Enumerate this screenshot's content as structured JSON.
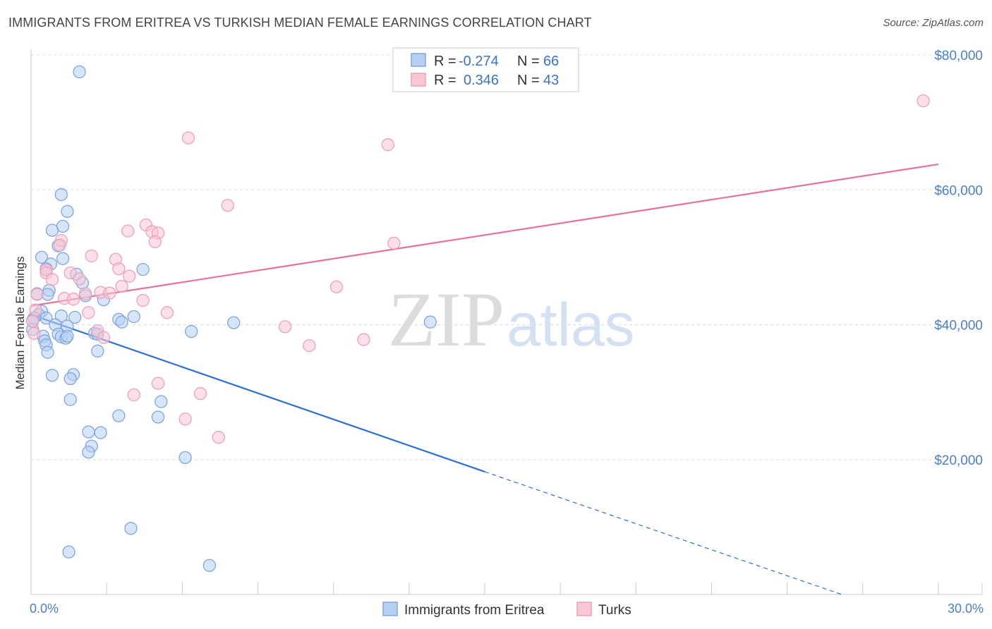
{
  "title": "IMMIGRANTS FROM ERITREA VS TURKISH MEDIAN FEMALE EARNINGS CORRELATION CHART",
  "source": "Source: ZipAtlas.com",
  "watermark": {
    "zip": "ZIP",
    "atlas": "atlas"
  },
  "chart_data": {
    "type": "scatter",
    "title": "IMMIGRANTS FROM ERITREA VS TURKISH MEDIAN FEMALE EARNINGS CORRELATION CHART",
    "xlabel": "",
    "ylabel": "Median Female Earnings",
    "xlim": [
      0,
      30
    ],
    "ylim": [
      0,
      82000
    ],
    "x_tick_labels": [
      "0.0%",
      "30.0%"
    ],
    "y_ticks": [
      20000,
      40000,
      60000,
      80000
    ],
    "y_tick_labels": [
      "$20,000",
      "$40,000",
      "$60,000",
      "$80,000"
    ],
    "legend": {
      "position": "top-center",
      "rows": [
        {
          "r_label": "R =",
          "r_value": "-0.274",
          "n_label": "N =",
          "n_value": "66"
        },
        {
          "r_label": "R =",
          "r_value": "0.346",
          "n_label": "N =",
          "n_value": "43"
        }
      ]
    },
    "series": [
      {
        "name": "Immigrants from Eritrea",
        "color": "#7fa6e0",
        "fill": "#b7cff2",
        "line_color": "#2e6fd0",
        "r": -0.274,
        "n": 66,
        "trend": {
          "x0": 0,
          "y0": 41500,
          "x1": 15,
          "y1": 18200,
          "dash_to_x": 26.8,
          "dash_to_y": 0
        },
        "points": [
          [
            1.6,
            77500
          ],
          [
            1.0,
            59300
          ],
          [
            1.2,
            56800
          ],
          [
            0.7,
            54000
          ],
          [
            1.05,
            54600
          ],
          [
            0.9,
            51700
          ],
          [
            0.35,
            50000
          ],
          [
            1.05,
            49800
          ],
          [
            0.65,
            49000
          ],
          [
            0.5,
            48300
          ],
          [
            3.7,
            48200
          ],
          [
            1.5,
            47500
          ],
          [
            1.7,
            46200
          ],
          [
            0.6,
            45100
          ],
          [
            0.2,
            44600
          ],
          [
            0.55,
            44500
          ],
          [
            1.8,
            44300
          ],
          [
            2.4,
            43700
          ],
          [
            0.35,
            42000
          ],
          [
            0.25,
            41500
          ],
          [
            0.1,
            41000
          ],
          [
            0.5,
            41000
          ],
          [
            0.05,
            40600
          ],
          [
            1.0,
            41300
          ],
          [
            1.45,
            41100
          ],
          [
            3.4,
            41200
          ],
          [
            2.9,
            40800
          ],
          [
            3.0,
            40400
          ],
          [
            6.7,
            40300
          ],
          [
            13.2,
            40400
          ],
          [
            0.8,
            40000
          ],
          [
            1.2,
            39800
          ],
          [
            0.05,
            39300
          ],
          [
            5.3,
            39000
          ],
          [
            2.1,
            38700
          ],
          [
            2.2,
            38600
          ],
          [
            0.9,
            38600
          ],
          [
            0.4,
            38300
          ],
          [
            1.0,
            38200
          ],
          [
            1.15,
            38000
          ],
          [
            1.2,
            38300
          ],
          [
            0.45,
            37600
          ],
          [
            0.5,
            37000
          ],
          [
            2.2,
            36100
          ],
          [
            0.55,
            35900
          ],
          [
            0.7,
            32500
          ],
          [
            1.4,
            32600
          ],
          [
            1.3,
            32000
          ],
          [
            1.3,
            28900
          ],
          [
            4.3,
            28600
          ],
          [
            2.9,
            26500
          ],
          [
            4.2,
            26300
          ],
          [
            1.9,
            24100
          ],
          [
            2.3,
            24000
          ],
          [
            2.0,
            22000
          ],
          [
            1.9,
            21100
          ],
          [
            5.1,
            20300
          ],
          [
            3.3,
            9800
          ],
          [
            1.25,
            6300
          ],
          [
            5.9,
            4300
          ]
        ]
      },
      {
        "name": "Turks",
        "color": "#f0a0b8",
        "fill": "#f9c6d4",
        "line_color": "#e8709a",
        "r": 0.346,
        "n": 43,
        "trend": {
          "x0": 0,
          "y0": 42800,
          "x1": 30,
          "y1": 63800
        },
        "points": [
          [
            29.5,
            73200
          ],
          [
            5.2,
            67700
          ],
          [
            11.8,
            66700
          ],
          [
            6.5,
            57700
          ],
          [
            3.8,
            54800
          ],
          [
            3.2,
            53900
          ],
          [
            4.0,
            53800
          ],
          [
            4.2,
            53600
          ],
          [
            1.0,
            52500
          ],
          [
            4.1,
            52300
          ],
          [
            12.0,
            52100
          ],
          [
            0.95,
            51800
          ],
          [
            2.0,
            50200
          ],
          [
            2.8,
            49700
          ],
          [
            0.5,
            48100
          ],
          [
            2.9,
            48300
          ],
          [
            0.5,
            47700
          ],
          [
            1.3,
            47700
          ],
          [
            3.25,
            47200
          ],
          [
            0.7,
            46700
          ],
          [
            1.6,
            46800
          ],
          [
            3.0,
            45700
          ],
          [
            10.1,
            45600
          ],
          [
            2.3,
            44800
          ],
          [
            2.6,
            44700
          ],
          [
            1.8,
            44600
          ],
          [
            0.2,
            44500
          ],
          [
            1.1,
            43900
          ],
          [
            1.4,
            43800
          ],
          [
            3.7,
            43600
          ],
          [
            0.15,
            42200
          ],
          [
            1.9,
            41800
          ],
          [
            4.5,
            41800
          ],
          [
            0.05,
            40500
          ],
          [
            8.4,
            39700
          ],
          [
            2.2,
            39100
          ],
          [
            0.1,
            38700
          ],
          [
            2.4,
            38100
          ],
          [
            11.0,
            37800
          ],
          [
            9.2,
            36900
          ],
          [
            4.2,
            31300
          ],
          [
            3.4,
            29600
          ],
          [
            5.6,
            29800
          ],
          [
            5.1,
            26000
          ],
          [
            6.2,
            23300
          ]
        ]
      }
    ]
  },
  "bottom_legend": [
    {
      "label": "Immigrants from Eritrea"
    },
    {
      "label": "Turks"
    }
  ]
}
